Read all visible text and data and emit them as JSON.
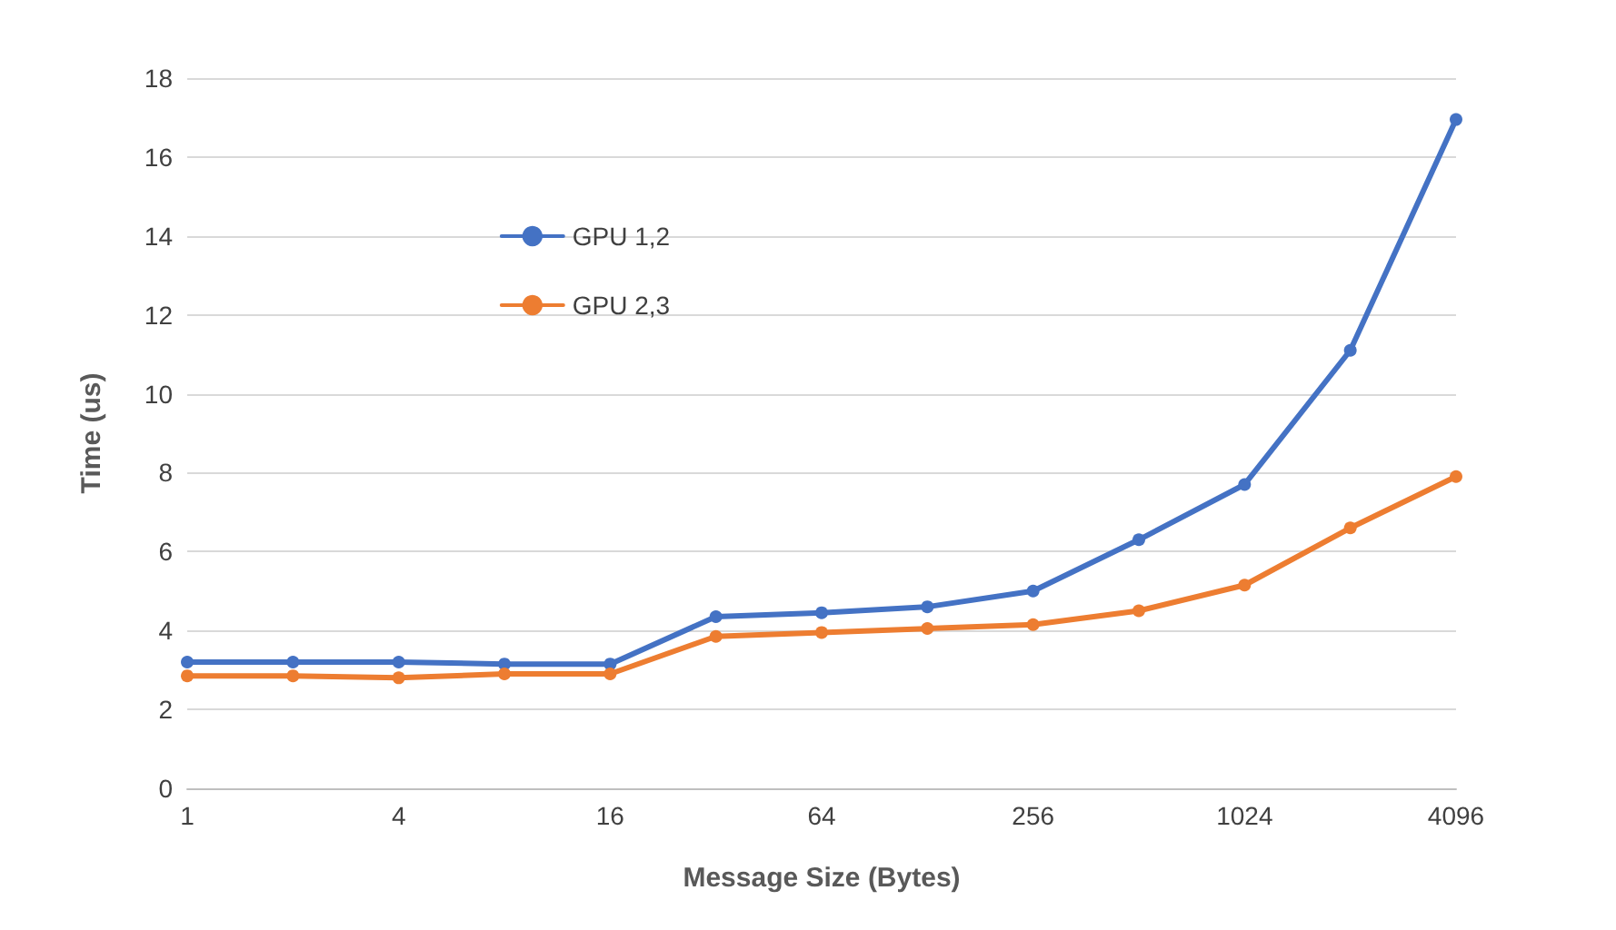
{
  "chart_data": {
    "type": "line",
    "xlabel": "Message Size (Bytes)",
    "ylabel": "Time (us)",
    "categories": [
      "1",
      null,
      "4",
      null,
      "16",
      null,
      "64",
      null,
      "256",
      null,
      "1024",
      null,
      "4096"
    ],
    "series": [
      {
        "name": "GPU 1,2",
        "color": "#4472c4",
        "values": [
          3.2,
          3.2,
          3.2,
          3.15,
          3.15,
          4.35,
          4.45,
          4.6,
          5.0,
          6.3,
          7.7,
          11.1,
          16.95
        ]
      },
      {
        "name": "GPU 2,3",
        "color": "#ed7d31",
        "values": [
          2.85,
          2.85,
          2.8,
          2.9,
          2.9,
          3.85,
          3.95,
          4.05,
          4.15,
          4.5,
          5.15,
          6.6,
          7.9
        ]
      }
    ],
    "ylim": [
      0,
      18
    ],
    "yticks": [
      0,
      2,
      4,
      6,
      8,
      10,
      12,
      14,
      16,
      18
    ],
    "grid": "y",
    "legend": "top left",
    "marker": "circle",
    "line_style": "solid"
  }
}
